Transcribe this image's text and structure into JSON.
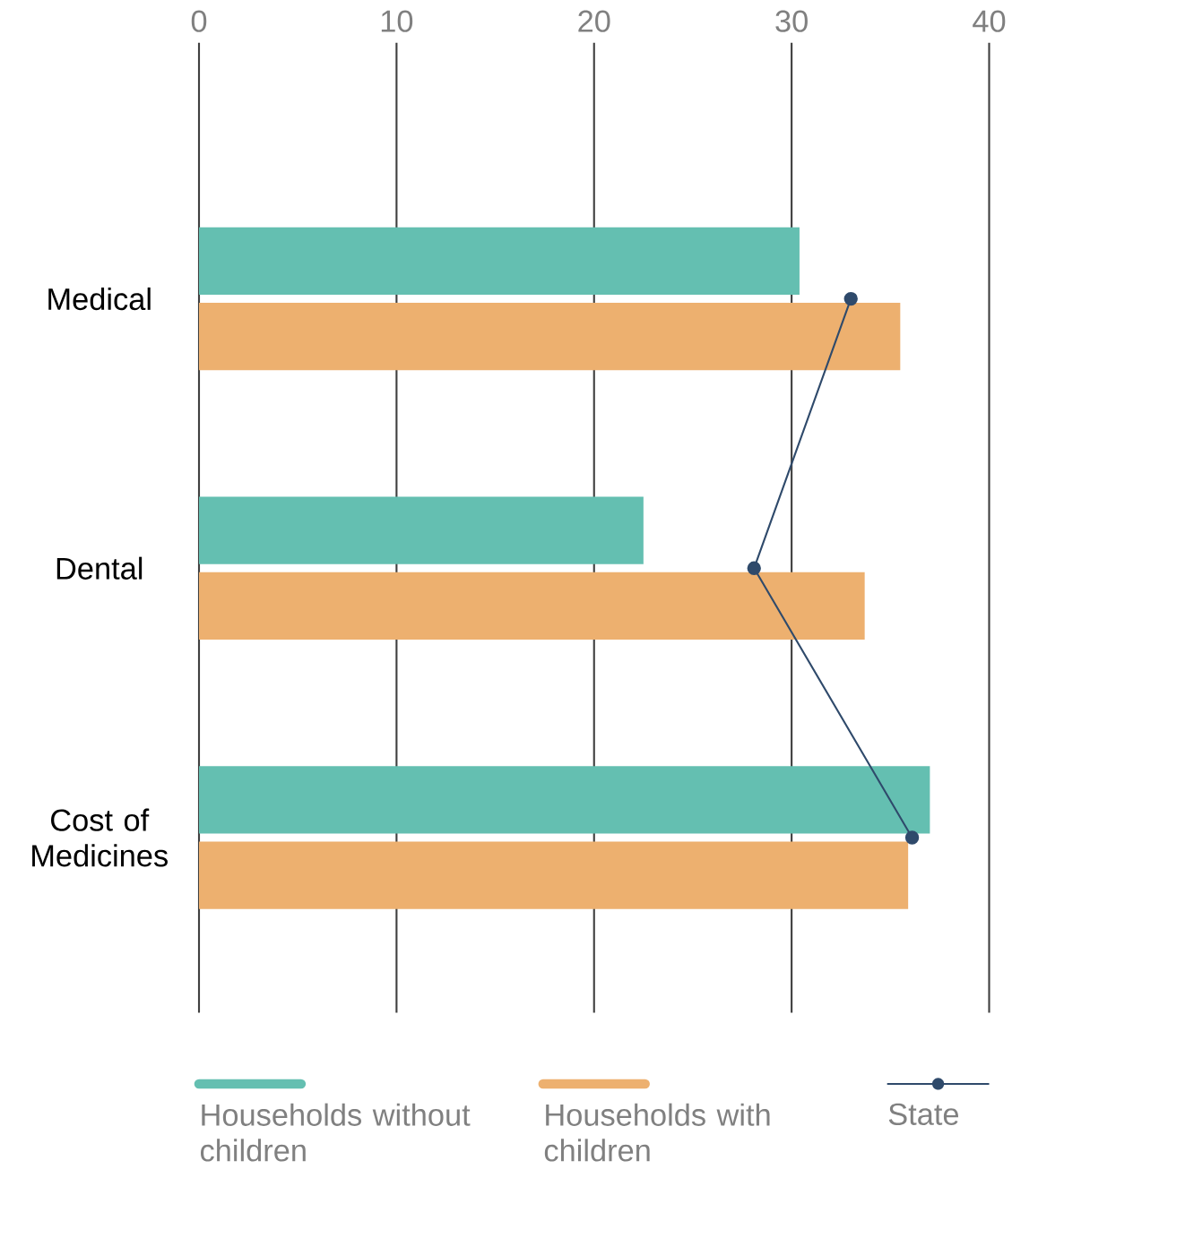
{
  "chart_data": {
    "type": "bar",
    "orientation": "horizontal",
    "categories": [
      "Medical",
      "Dental",
      "Cost of Medicines"
    ],
    "series": [
      {
        "name": "Households without children",
        "color": "#64bfb1",
        "values": [
          30.4,
          22.5,
          37.0
        ]
      },
      {
        "name": "Households with children",
        "color": "#edb06f",
        "values": [
          35.5,
          33.7,
          35.9
        ]
      },
      {
        "name": "State",
        "type": "line",
        "color": "#2f4a6b",
        "marker": "circle",
        "values": [
          33.0,
          28.1,
          36.1
        ]
      }
    ],
    "xlim": [
      0,
      40
    ],
    "xticks": [
      0,
      10,
      20,
      30,
      40
    ],
    "grid": "x",
    "legend": "bottom"
  }
}
